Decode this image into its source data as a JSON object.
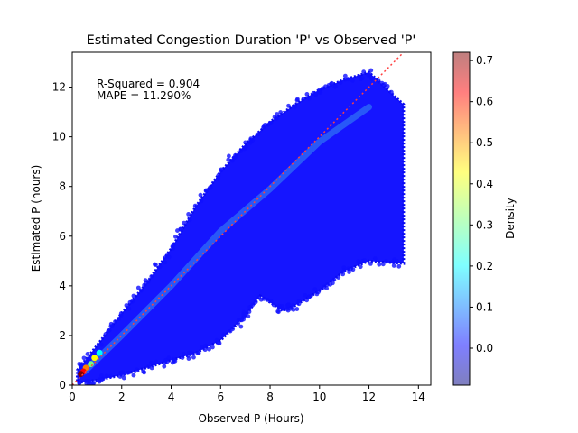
{
  "chart_data": {
    "type": "scatter",
    "title": "Estimated Congestion Duration 'P' vs Observed 'P'",
    "xlabel": "Observed P (Hours)",
    "ylabel": "Estimated P (hours)",
    "xlim": [
      0,
      14.5
    ],
    "ylim": [
      0,
      13.4
    ],
    "xticks": [
      0,
      2,
      4,
      6,
      8,
      10,
      12,
      14
    ],
    "yticks": [
      0,
      2,
      4,
      6,
      8,
      10,
      12
    ],
    "annotations": [
      "R-Squared = 0.904",
      "MAPE = 11.290%"
    ],
    "reference_line": {
      "style": "dotted",
      "color": "#ff4040",
      "from": [
        0,
        0
      ],
      "to": [
        13.4,
        13.4
      ]
    },
    "colorbar": {
      "label": "Density",
      "range": [
        -0.09,
        0.72
      ],
      "ticks": [
        0.0,
        0.1,
        0.2,
        0.3,
        0.4,
        0.5,
        0.6,
        0.7
      ],
      "colormap": "jet"
    },
    "point_cloud": {
      "upper_edge": [
        [
          0.2,
          0.6
        ],
        [
          1,
          1.6
        ],
        [
          2,
          2.9
        ],
        [
          3,
          4.1
        ],
        [
          4,
          5.5
        ],
        [
          5,
          7.2
        ],
        [
          6,
          8.6
        ],
        [
          7,
          9.7
        ],
        [
          8,
          10.6
        ],
        [
          9,
          11.3
        ],
        [
          10,
          11.9
        ],
        [
          11,
          12.3
        ],
        [
          12,
          12.6
        ],
        [
          13.4,
          11.3
        ]
      ],
      "lower_edge": [
        [
          0.2,
          0.1
        ],
        [
          1,
          0.2
        ],
        [
          2,
          0.4
        ],
        [
          3,
          0.7
        ],
        [
          4,
          1.0
        ],
        [
          5,
          1.3
        ],
        [
          6,
          1.8
        ],
        [
          7,
          2.8
        ],
        [
          7.6,
          3.6
        ],
        [
          8.5,
          3.0
        ],
        [
          9,
          3.2
        ],
        [
          10,
          3.8
        ],
        [
          11,
          4.6
        ],
        [
          12,
          5.0
        ],
        [
          13.4,
          4.9
        ]
      ],
      "density_ridge": [
        [
          0.5,
          0.55
        ],
        [
          2,
          2.0
        ],
        [
          4,
          4.0
        ],
        [
          6,
          6.2
        ],
        [
          8,
          7.9
        ],
        [
          10,
          9.8
        ],
        [
          12,
          11.2
        ]
      ],
      "peak_density": {
        "x": 0.35,
        "y": 0.45,
        "value": 0.71
      }
    }
  }
}
